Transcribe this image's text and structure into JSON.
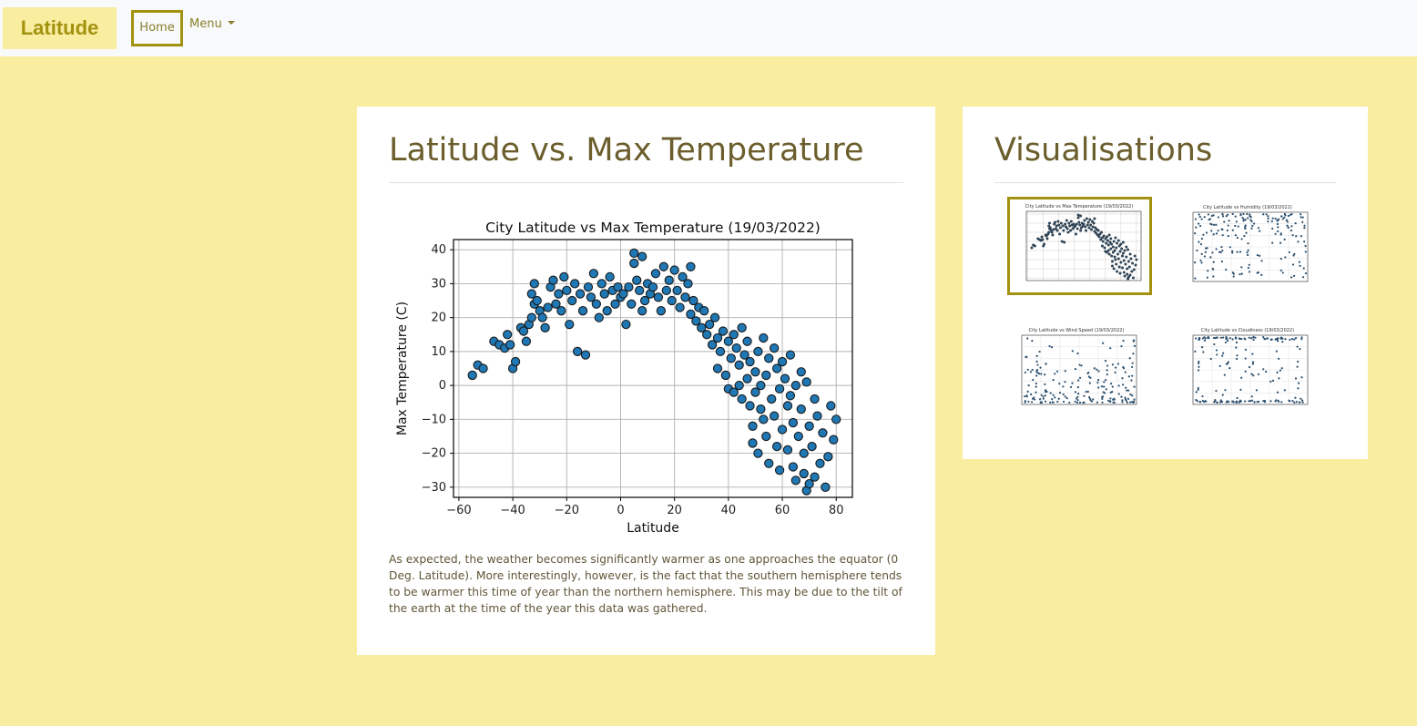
{
  "nav": {
    "brand": "Latitude",
    "home": "Home",
    "menu": "Menu"
  },
  "main": {
    "title": "Latitude vs. Max Temperature",
    "description": "As expected, the weather becomes significantly warmer as one approaches the equator (0 Deg. Latitude). More interestingly, however, is the fact that the southern hemisphere tends to be warmer this time of year than the northern hemisphere. This may be due to the tilt of the earth at the time of the year this data was gathered."
  },
  "side": {
    "title": "Visualisations",
    "thumbs": [
      {
        "title": "City Latitude vs Max Temperature (19/03/2022)",
        "active": true
      },
      {
        "title": "City Latitude vs Humidity (19/03/2022)",
        "active": false
      },
      {
        "title": "City Latitude vs Wind Speed (19/03/2022)",
        "active": false
      },
      {
        "title": "City Latitude vs Cloudiness (19/03/2022)",
        "active": false
      }
    ]
  },
  "chart_data": {
    "type": "scatter",
    "title": "City Latitude vs Max Temperature (19/03/2022)",
    "xlabel": "Latitude",
    "ylabel": "Max Temperature (C)",
    "xlim": [
      -62,
      86
    ],
    "ylim": [
      -33,
      43
    ],
    "xticks": [
      "−60",
      "−40",
      "−20",
      "0",
      "20",
      "40",
      "60",
      "80"
    ],
    "yticks": [
      "−30",
      "−20",
      "−10",
      "0",
      "10",
      "20",
      "30",
      "40"
    ],
    "grid": true,
    "marker_color": "#1f77b4",
    "points": [
      [
        -55,
        3
      ],
      [
        -53,
        6
      ],
      [
        -51,
        5
      ],
      [
        -47,
        13
      ],
      [
        -45,
        12
      ],
      [
        -43,
        11
      ],
      [
        -42,
        15
      ],
      [
        -41,
        12
      ],
      [
        -40,
        5
      ],
      [
        -39,
        7
      ],
      [
        -37,
        17
      ],
      [
        -36,
        16
      ],
      [
        -35,
        13
      ],
      [
        -34,
        18
      ],
      [
        -33,
        20
      ],
      [
        -33,
        27
      ],
      [
        -32,
        24
      ],
      [
        -32,
        30
      ],
      [
        -31,
        25
      ],
      [
        -30,
        22
      ],
      [
        -29,
        20
      ],
      [
        -28,
        17
      ],
      [
        -27,
        23
      ],
      [
        -26,
        29
      ],
      [
        -25,
        31
      ],
      [
        -24,
        24
      ],
      [
        -23,
        27
      ],
      [
        -22,
        22
      ],
      [
        -21,
        32
      ],
      [
        -20,
        28
      ],
      [
        -19,
        18
      ],
      [
        -18,
        25
      ],
      [
        -17,
        30
      ],
      [
        -16,
        10
      ],
      [
        -15,
        27
      ],
      [
        -14,
        22
      ],
      [
        -13,
        9
      ],
      [
        -12,
        29
      ],
      [
        -11,
        26
      ],
      [
        -10,
        33
      ],
      [
        -9,
        24
      ],
      [
        -8,
        20
      ],
      [
        -7,
        30
      ],
      [
        -6,
        27
      ],
      [
        -5,
        22
      ],
      [
        -4,
        32
      ],
      [
        -3,
        28
      ],
      [
        -2,
        24
      ],
      [
        -1,
        29
      ],
      [
        0,
        26
      ],
      [
        1,
        27
      ],
      [
        2,
        18
      ],
      [
        3,
        29
      ],
      [
        4,
        24
      ],
      [
        5,
        36
      ],
      [
        5,
        39
      ],
      [
        6,
        31
      ],
      [
        7,
        28
      ],
      [
        8,
        22
      ],
      [
        8,
        38
      ],
      [
        9,
        25
      ],
      [
        10,
        30
      ],
      [
        11,
        27
      ],
      [
        12,
        29
      ],
      [
        13,
        33
      ],
      [
        14,
        26
      ],
      [
        15,
        22
      ],
      [
        16,
        35
      ],
      [
        17,
        28
      ],
      [
        18,
        31
      ],
      [
        19,
        25
      ],
      [
        20,
        34
      ],
      [
        21,
        28
      ],
      [
        22,
        23
      ],
      [
        23,
        32
      ],
      [
        24,
        26
      ],
      [
        25,
        30
      ],
      [
        26,
        35
      ],
      [
        26,
        21
      ],
      [
        27,
        25
      ],
      [
        28,
        19
      ],
      [
        29,
        23
      ],
      [
        30,
        17
      ],
      [
        31,
        22
      ],
      [
        32,
        15
      ],
      [
        33,
        18
      ],
      [
        34,
        12
      ],
      [
        35,
        20
      ],
      [
        36,
        14
      ],
      [
        36,
        5
      ],
      [
        37,
        10
      ],
      [
        38,
        16
      ],
      [
        39,
        3
      ],
      [
        40,
        13
      ],
      [
        40,
        -1
      ],
      [
        41,
        8
      ],
      [
        42,
        15
      ],
      [
        42,
        -2
      ],
      [
        43,
        11
      ],
      [
        44,
        6
      ],
      [
        44,
        0
      ],
      [
        45,
        17
      ],
      [
        45,
        -4
      ],
      [
        46,
        9
      ],
      [
        47,
        13
      ],
      [
        47,
        2
      ],
      [
        48,
        -6
      ],
      [
        48,
        7
      ],
      [
        49,
        -12
      ],
      [
        49,
        -17
      ],
      [
        50,
        4
      ],
      [
        50,
        -2
      ],
      [
        51,
        10
      ],
      [
        51,
        -20
      ],
      [
        52,
        -7
      ],
      [
        52,
        0
      ],
      [
        53,
        14
      ],
      [
        53,
        -10
      ],
      [
        54,
        3
      ],
      [
        54,
        -15
      ],
      [
        55,
        8
      ],
      [
        55,
        -23
      ],
      [
        56,
        -4
      ],
      [
        57,
        11
      ],
      [
        57,
        -9
      ],
      [
        58,
        5
      ],
      [
        58,
        -18
      ],
      [
        59,
        -1
      ],
      [
        59,
        -25
      ],
      [
        60,
        7
      ],
      [
        60,
        -13
      ],
      [
        61,
        2
      ],
      [
        62,
        -6
      ],
      [
        62,
        -19
      ],
      [
        63,
        9
      ],
      [
        63,
        -3
      ],
      [
        64,
        -11
      ],
      [
        64,
        -24
      ],
      [
        65,
        0
      ],
      [
        65,
        -28
      ],
      [
        66,
        -15
      ],
      [
        67,
        4
      ],
      [
        67,
        -7
      ],
      [
        68,
        -26
      ],
      [
        68,
        -20
      ],
      [
        69,
        1
      ],
      [
        69,
        -31
      ],
      [
        70,
        -12
      ],
      [
        70,
        -29
      ],
      [
        71,
        -18
      ],
      [
        72,
        -4
      ],
      [
        72,
        -27
      ],
      [
        73,
        -9
      ],
      [
        74,
        -23
      ],
      [
        75,
        -14
      ],
      [
        76,
        -30
      ],
      [
        77,
        -21
      ],
      [
        78,
        -6
      ],
      [
        79,
        -16
      ],
      [
        80,
        -10
      ]
    ]
  }
}
